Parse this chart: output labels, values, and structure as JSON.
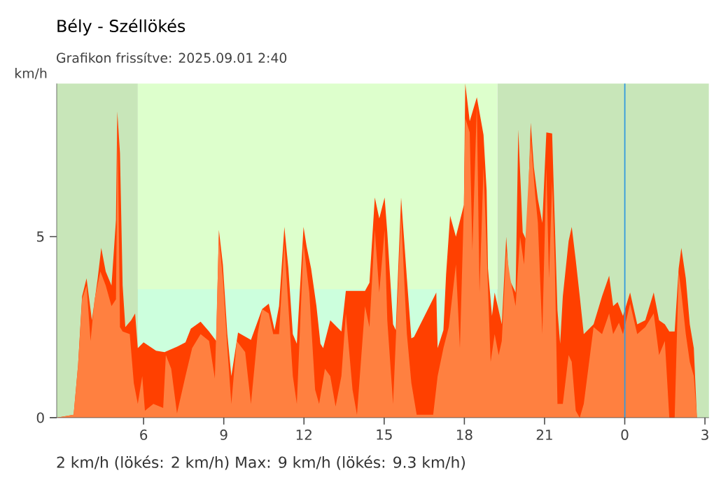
{
  "chart_data": {
    "type": "area",
    "title": "Bély - Széllökés",
    "subtitle": "Grafikon frissítve: 2025.09.01 2:40",
    "ylabel": "km/h",
    "xlim": [
      "2025-08-31T02:45",
      "2025-09-01T03:09"
    ],
    "ylim": [
      0,
      9.23
    ],
    "xticks": [
      {
        "value": "2025-08-31T06:00",
        "label": "6"
      },
      {
        "value": "2025-08-31T09:00",
        "label": "9"
      },
      {
        "value": "2025-08-31T12:00",
        "label": "12"
      },
      {
        "value": "2025-08-31T15:00",
        "label": "15"
      },
      {
        "value": "2025-08-31T18:00",
        "label": "18"
      },
      {
        "value": "2025-08-31T21:00",
        "label": "21"
      },
      {
        "value": "2025-09-01T00:00",
        "label": "0"
      },
      {
        "value": "2025-09-01T03:00",
        "label": "3"
      }
    ],
    "yticks": [
      0,
      5
    ],
    "bands": [
      {
        "axis": "x",
        "from": "2025-08-31T05:47",
        "to": "2025-08-31T19:14",
        "color": "#ddffcc"
      },
      {
        "axis": "y",
        "from": 0,
        "to": 3.55,
        "color": "#ccffdd"
      },
      {
        "axis": "x",
        "from": "2025-08-31T02:45",
        "to": "2025-08-31T05:47",
        "color": "#c8e6b9"
      },
      {
        "axis": "x",
        "from": "2025-08-31T19:14",
        "to": "2025-09-01T03:09",
        "color": "#c8e6b9"
      }
    ],
    "ref_lines": [
      {
        "axis": "x",
        "value": "2025-09-01T00:00",
        "color": "#3399dd"
      }
    ],
    "series": [
      {
        "color": "#ff4000",
        "x": [
          "2025-08-31T02:45",
          "2025-08-31T03:23",
          "2025-08-31T03:33",
          "2025-08-31T03:42",
          "2025-08-31T03:52",
          "2025-08-31T04:04",
          "2025-08-31T04:17",
          "2025-08-31T04:25",
          "2025-08-31T04:35",
          "2025-08-31T04:48",
          "2025-08-31T04:58",
          "2025-08-31T05:01",
          "2025-08-31T05:07",
          "2025-08-31T05:13",
          "2025-08-31T05:19",
          "2025-08-31T05:32",
          "2025-08-31T05:41",
          "2025-08-31T05:47",
          "2025-08-31T06:00",
          "2025-08-31T06:28",
          "2025-08-31T06:47",
          "2025-08-31T07:15",
          "2025-08-31T07:34",
          "2025-08-31T07:46",
          "2025-08-31T08:08",
          "2025-08-31T08:27",
          "2025-08-31T08:43",
          "2025-08-31T08:49",
          "2025-08-31T08:58",
          "2025-08-31T09:08",
          "2025-08-31T09:17",
          "2025-08-31T09:32",
          "2025-08-31T10:01",
          "2025-08-31T10:20",
          "2025-08-31T10:26",
          "2025-08-31T10:41",
          "2025-08-31T10:54",
          "2025-08-31T11:04",
          "2025-08-31T11:16",
          "2025-08-31T11:25",
          "2025-08-31T11:35",
          "2025-08-31T11:44",
          "2025-08-31T11:59",
          "2025-08-31T12:06",
          "2025-08-31T12:16",
          "2025-08-31T12:28",
          "2025-08-31T12:37",
          "2025-08-31T12:43",
          "2025-08-31T12:59",
          "2025-08-31T13:24",
          "2025-08-31T13:34",
          "2025-08-31T14:17",
          "2025-08-31T14:27",
          "2025-08-31T14:39",
          "2025-08-31T14:49",
          "2025-08-31T15:01",
          "2025-08-31T15:07",
          "2025-08-31T15:20",
          "2025-08-31T15:26",
          "2025-08-31T15:38",
          "2025-08-31T15:51",
          "2025-08-31T16:01",
          "2025-08-31T16:07",
          "2025-08-31T16:57",
          "2025-08-31T17:00",
          "2025-08-31T17:13",
          "2025-08-31T17:19",
          "2025-08-31T17:28",
          "2025-08-31T17:41",
          "2025-08-31T17:50",
          "2025-08-31T17:59",
          "2025-08-31T18:02",
          "2025-08-31T18:12",
          "2025-08-31T18:18",
          "2025-08-31T18:28",
          "2025-08-31T18:34",
          "2025-08-31T18:43",
          "2025-08-31T18:50",
          "2025-08-31T18:53",
          "2025-08-31T19:02",
          "2025-08-31T19:08",
          "2025-08-31T19:24",
          "2025-08-31T19:34",
          "2025-08-31T19:40",
          "2025-08-31T19:55",
          "2025-08-31T20:01",
          "2025-08-31T20:11",
          "2025-08-31T20:20",
          "2025-08-31T20:29",
          "2025-08-31T20:36",
          "2025-08-31T20:45",
          "2025-08-31T20:55",
          "2025-08-31T21:04",
          "2025-08-31T21:07",
          "2025-08-31T21:17",
          "2025-08-31T21:23",
          "2025-08-31T21:29",
          "2025-08-31T21:35",
          "2025-08-31T21:41",
          "2025-08-31T21:54",
          "2025-08-31T22:01",
          "2025-08-31T22:10",
          "2025-08-31T22:19",
          "2025-08-31T22:28",
          "2025-08-31T22:50",
          "2025-08-31T23:09",
          "2025-08-31T23:25",
          "2025-08-31T23:34",
          "2025-08-31T23:44",
          "2025-08-31T23:56",
          "2025-09-01T00:12",
          "2025-09-01T00:28",
          "2025-09-01T00:46",
          "2025-09-01T01:05",
          "2025-09-01T01:17",
          "2025-09-01T01:30",
          "2025-09-01T01:40",
          "2025-09-01T01:52",
          "2025-09-01T02:01",
          "2025-09-01T02:07",
          "2025-09-01T02:17",
          "2025-09-01T02:26",
          "2025-09-01T02:35",
          "2025-09-01T02:42"
        ],
        "values": [
          0,
          0.08,
          1.46,
          3.35,
          3.85,
          2.69,
          3.85,
          4.69,
          4.04,
          3.65,
          5.46,
          8.46,
          7.31,
          3.65,
          2.5,
          2.69,
          2.88,
          1.92,
          2.08,
          1.85,
          1.81,
          1.96,
          2.08,
          2.46,
          2.65,
          2.38,
          2.12,
          5.19,
          4.23,
          2.31,
          1.15,
          2.35,
          2.15,
          null,
          3.0,
          3.15,
          2.42,
          3.08,
          5.27,
          4.12,
          2.31,
          2.04,
          5.27,
          4.73,
          4.12,
          3.08,
          2.04,
          1.92,
          2.69,
          2.38,
          3.5,
          3.5,
          3.73,
          6.08,
          5.5,
          6.08,
          5.12,
          2.58,
          2.42,
          6.08,
          3.85,
          2.19,
          2.23,
          3.46,
          1.92,
          2.42,
          3.96,
          5.58,
          5.0,
          null,
          5.88,
          9.23,
          8.19,
          null,
          8.85,
          null,
          7.81,
          6.27,
          4.12,
          2.81,
          3.46,
          2.58,
          5.0,
          3.85,
          3.46,
          7.96,
          5.12,
          4.88,
          8.15,
          6.92,
          6.04,
          5.38,
          7.88,
          null,
          7.85,
          5.38,
          2.96,
          2.04,
          3.35,
          4.88,
          5.27,
          4.35,
          3.35,
          2.31,
          2.58,
          3.35,
          3.92,
          3.08,
          3.19,
          2.81,
          3.46,
          2.58,
          2.69,
          3.46,
          2.69,
          2.58,
          2.38,
          2.38,
          4.12,
          4.69,
          3.85,
          2.58,
          1.92,
          0
        ]
      },
      {
        "color": "#ff8040",
        "x": [
          "2025-08-31T02:45",
          "2025-08-31T03:23",
          "2025-08-31T03:33",
          "2025-08-31T03:42",
          "2025-08-31T03:52",
          "2025-08-31T04:01",
          "2025-08-31T04:10",
          "2025-08-31T04:23",
          "2025-08-31T04:35",
          "2025-08-31T04:48",
          "2025-08-31T04:58",
          "2025-08-31T05:02",
          "2025-08-31T05:07",
          "2025-08-31T05:13",
          "2025-08-31T05:29",
          "2025-08-31T05:38",
          "2025-08-31T05:47",
          "2025-08-31T05:57",
          "2025-08-31T06:03",
          "2025-08-31T06:22",
          "2025-08-31T06:44",
          "2025-08-31T06:50",
          "2025-08-31T07:02",
          "2025-08-31T07:15",
          "2025-08-31T07:34",
          "2025-08-31T07:49",
          "2025-08-31T08:08",
          "2025-08-31T08:27",
          "2025-08-31T08:40",
          "2025-08-31T08:49",
          "2025-08-31T08:58",
          "2025-08-31T09:08",
          "2025-08-31T09:17",
          "2025-08-31T09:29",
          "2025-08-31T09:48",
          "2025-08-31T10:01",
          "2025-08-31T10:16",
          "2025-08-31T10:26",
          "2025-08-31T10:41",
          "2025-08-31T10:51",
          "2025-08-31T11:04",
          "2025-08-31T11:16",
          "2025-08-31T11:25",
          "2025-08-31T11:35",
          "2025-08-31T11:44",
          "2025-08-31T11:59",
          "2025-08-31T12:12",
          "2025-08-31T12:25",
          "2025-08-31T12:34",
          "2025-08-31T12:47",
          "2025-08-31T12:59",
          "2025-08-31T13:11",
          "2025-08-31T13:24",
          "2025-08-31T13:34",
          "2025-08-31T13:49",
          "2025-08-31T13:59",
          "2025-08-31T14:17",
          "2025-08-31T14:27",
          "2025-08-31T14:39",
          "2025-08-31T14:49",
          "2025-08-31T15:01",
          "2025-08-31T15:07",
          "2025-08-31T15:20",
          "2025-08-31T15:26",
          "2025-08-31T15:38",
          "2025-08-31T15:51",
          "2025-08-31T16:01",
          "2025-08-31T16:13",
          "2025-08-31T16:50",
          "2025-08-31T17:00",
          "2025-08-31T17:13",
          "2025-08-31T17:25",
          "2025-08-31T17:41",
          "2025-08-31T17:50",
          "2025-08-31T17:59",
          "2025-08-31T18:02",
          "2025-08-31T18:12",
          "2025-08-31T18:18",
          "2025-08-31T18:28",
          "2025-08-31T18:34",
          "2025-08-31T18:43",
          "2025-08-31T18:50",
          "2025-08-31T18:59",
          "2025-08-31T19:08",
          "2025-08-31T19:17",
          "2025-08-31T19:24",
          "2025-08-31T19:34",
          "2025-08-31T19:43",
          "2025-08-31T19:55",
          "2025-08-31T20:05",
          "2025-08-31T20:14",
          "2025-08-31T20:29",
          "2025-08-31T20:39",
          "2025-08-31T20:45",
          "2025-08-31T20:55",
          "2025-08-31T21:04",
          "2025-08-31T21:10",
          "2025-08-31T21:17",
          "2025-08-31T21:23",
          "2025-08-31T21:29",
          "2025-08-31T21:41",
          "2025-08-31T21:54",
          "2025-08-31T22:01",
          "2025-08-31T22:10",
          "2025-08-31T22:19",
          "2025-08-31T22:28",
          "2025-08-31T22:50",
          "2025-08-31T23:09",
          "2025-08-31T23:25",
          "2025-08-31T23:34",
          "2025-08-31T23:47",
          "2025-08-31T23:56",
          "2025-09-01T00:12",
          "2025-09-01T00:28",
          "2025-09-01T00:46",
          "2025-09-01T01:05",
          "2025-09-01T01:17",
          "2025-09-01T01:30",
          "2025-09-01T01:40",
          "2025-09-01T01:52",
          "2025-09-01T02:01",
          "2025-09-01T02:07",
          "2025-09-01T02:17",
          "2025-09-01T02:26",
          "2025-09-01T02:35",
          "2025-09-01T02:42"
        ],
        "values": [
          0,
          0.08,
          1.46,
          3.27,
          3.65,
          2.12,
          3.27,
          4.04,
          3.65,
          3.08,
          3.27,
          7.96,
          2.5,
          2.38,
          2.31,
          0.96,
          0.38,
          1.15,
          0.19,
          0.38,
          0.27,
          1.73,
          1.35,
          0.12,
          1.15,
          1.92,
          2.31,
          2.12,
          1.08,
          5.0,
          3.85,
          1.92,
          0.38,
          2.12,
          1.81,
          0.38,
          2.31,
          3.0,
          2.88,
          2.31,
          2.31,
          4.81,
          3.08,
          1.15,
          0.38,
          4.81,
          3.46,
          0.77,
          0.38,
          1.35,
          1.15,
          0.31,
          1.15,
          2.88,
          0.77,
          0.08,
          3.08,
          2.5,
          5.19,
          3.46,
          5.19,
          2.69,
          0.38,
          2.12,
          5.58,
          2.31,
          0.96,
          0.08,
          0.08,
          1.15,
          1.92,
          2.5,
          4.23,
          1.92,
          5.88,
          8.27,
          7.88,
          4.62,
          8.65,
          3.46,
          6.92,
          4.62,
          1.54,
          2.31,
          1.73,
          2.12,
          4.62,
          3.85,
          3.08,
          5.0,
          4.23,
          7.69,
          6.15,
          5.38,
          2.31,
          6.92,
          3.85,
          6.54,
          4.23,
          0.38,
          0.38,
          1.73,
          1.54,
          0.19,
          0,
          0.38,
          2.5,
          2.31,
          2.88,
          2.31,
          2.62,
          2.31,
          3.15,
          2.31,
          2.5,
          2.88,
          1.73,
          2.12,
          0,
          0,
          4.04,
          3.46,
          2.31,
          1.54,
          1.15,
          0
        ]
      }
    ],
    "annotations": [
      "2 km/h (lökés: 2 km/h)  Max: 9 km/h (lökés: 9.3 km/h)"
    ]
  }
}
